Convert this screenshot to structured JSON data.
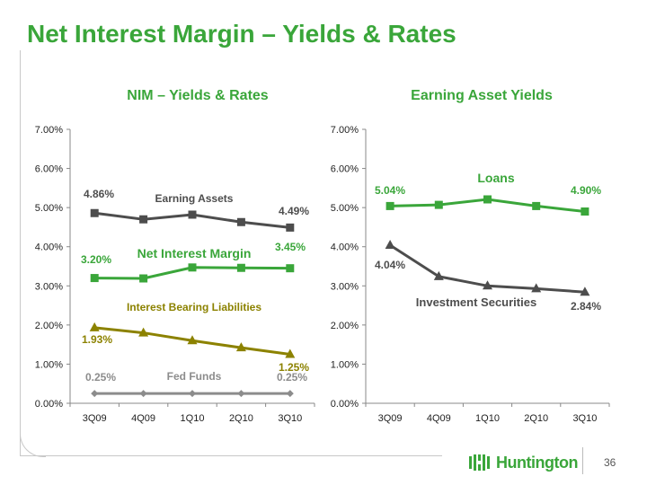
{
  "slide": {
    "title": "Net Interest Margin – Yields & Rates",
    "page_number": "36",
    "logo_text": "Huntington"
  },
  "colors": {
    "green": "#3aa63a",
    "dark_gray": "#4d4d4d",
    "olive": "#8c8200",
    "light_gray": "#8c8c8c"
  },
  "chart_data": [
    {
      "type": "line",
      "title": "NIM – Yields & Rates",
      "categories": [
        "3Q09",
        "4Q09",
        "1Q10",
        "2Q10",
        "3Q10"
      ],
      "ylim": [
        0,
        7
      ],
      "yticks": [
        "0.00%",
        "1.00%",
        "2.00%",
        "3.00%",
        "4.00%",
        "5.00%",
        "6.00%",
        "7.00%"
      ],
      "series": [
        {
          "name": "Earning Assets",
          "values": [
            4.86,
            4.7,
            4.82,
            4.63,
            4.49
          ],
          "color": "#4d4d4d",
          "marker": "square",
          "start_label": "4.86%",
          "end_label": "4.49%"
        },
        {
          "name": "Net Interest Margin",
          "values": [
            3.2,
            3.19,
            3.47,
            3.46,
            3.45
          ],
          "color": "#3aa63a",
          "marker": "square",
          "start_label": "3.20%",
          "end_label": "3.45%"
        },
        {
          "name": "Interest Bearing Liabilities",
          "values": [
            1.93,
            1.8,
            1.6,
            1.42,
            1.25
          ],
          "color": "#8c8200",
          "marker": "triangle",
          "start_label": "1.93%",
          "end_label": "1.25%"
        },
        {
          "name": "Fed Funds",
          "values": [
            0.25,
            0.25,
            0.25,
            0.25,
            0.25
          ],
          "color": "#8c8c8c",
          "marker": "diamond",
          "start_label": "0.25%",
          "end_label": "0.25%"
        }
      ]
    },
    {
      "type": "line",
      "title": "Earning Asset Yields",
      "categories": [
        "3Q09",
        "4Q09",
        "1Q10",
        "2Q10",
        "3Q10"
      ],
      "ylim": [
        0,
        7
      ],
      "yticks": [
        "0.00%",
        "1.00%",
        "2.00%",
        "3.00%",
        "4.00%",
        "5.00%",
        "6.00%",
        "7.00%"
      ],
      "series": [
        {
          "name": "Loans",
          "values": [
            5.04,
            5.07,
            5.21,
            5.04,
            4.9
          ],
          "color": "#3aa63a",
          "marker": "square",
          "start_label": "5.04%",
          "end_label": "4.90%"
        },
        {
          "name": "Investment Securities",
          "values": [
            4.04,
            3.24,
            3.0,
            2.93,
            2.84
          ],
          "color": "#4d4d4d",
          "marker": "triangle",
          "start_label": "4.04%",
          "end_label": "2.84%"
        }
      ]
    }
  ]
}
